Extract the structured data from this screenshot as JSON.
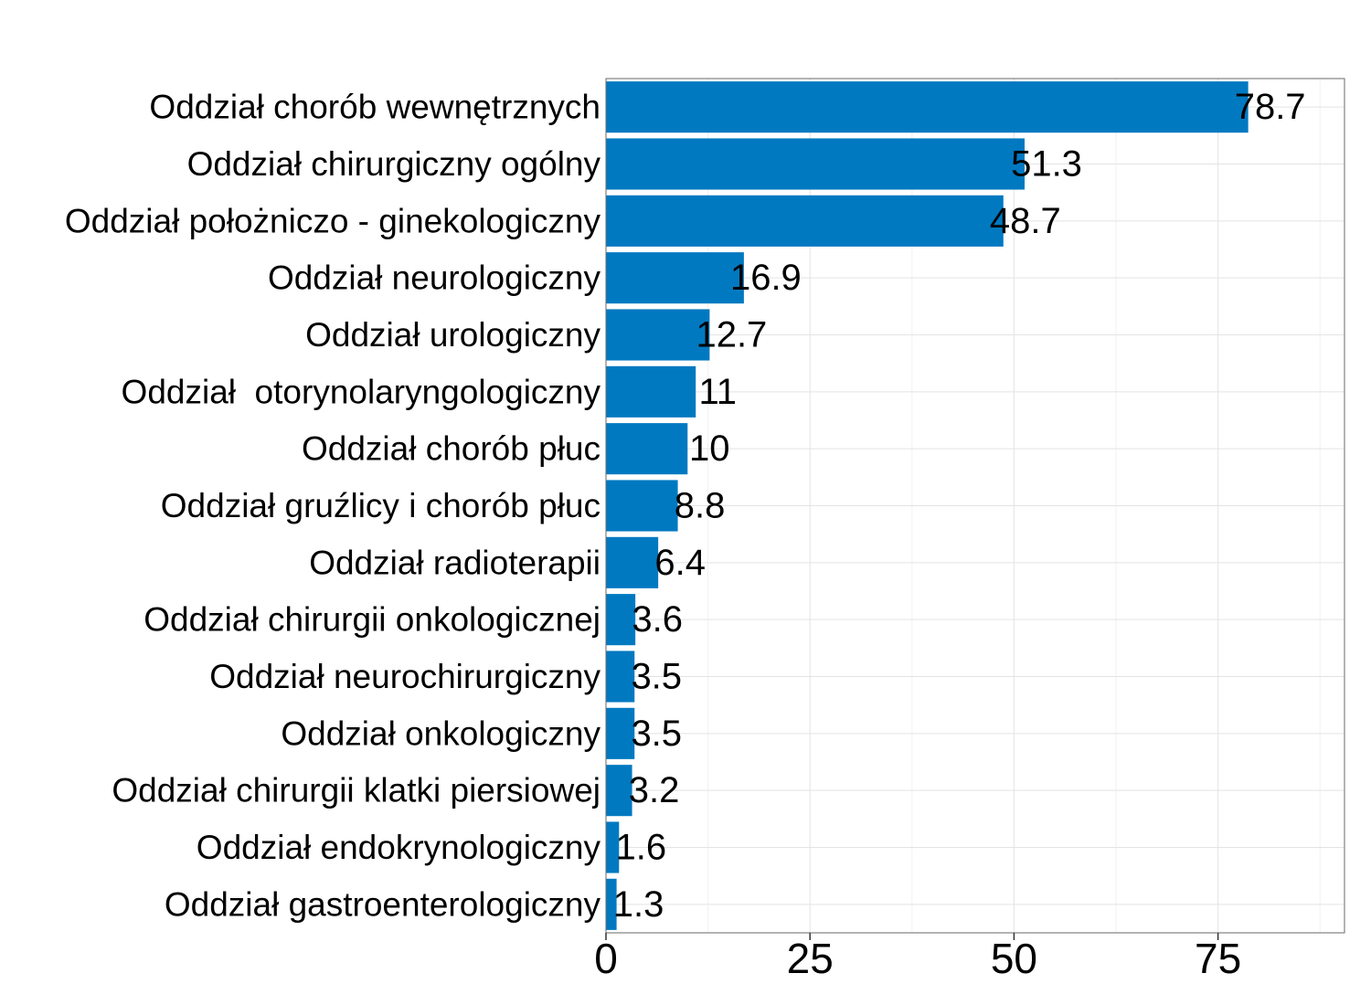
{
  "chart_data": {
    "type": "bar",
    "orientation": "horizontal",
    "categories": [
      "Oddział chorób wewnętrznych",
      "Oddział chirurgiczny ogólny",
      "Oddział położniczo - ginekologiczny",
      "Oddział neurologiczny",
      "Oddział urologiczny",
      "Oddział  otorynolaryngologiczny",
      "Oddział chorób płuc",
      "Oddział gruźlicy i chorób płuc",
      "Oddział radioterapii",
      "Oddział chirurgii onkologicznej",
      "Oddział neurochirurgiczny",
      "Oddział onkologiczny",
      "Oddział chirurgii klatki piersiowej",
      "Oddział endokrynologiczny",
      "Oddział gastroenterologiczny"
    ],
    "values": [
      78.7,
      51.3,
      48.7,
      16.9,
      12.7,
      11,
      10,
      8.8,
      6.4,
      3.6,
      3.5,
      3.5,
      3.2,
      1.6,
      1.3
    ],
    "value_labels": [
      "78.7",
      "51.3",
      "48.7",
      "16.9",
      "12.7",
      "11",
      "10",
      "8.8",
      "6.4",
      "3.6",
      "3.5",
      "3.5",
      "3.2",
      "1.6",
      "1.3"
    ],
    "x_ticks": [
      0,
      25,
      50,
      75
    ],
    "x_tick_labels": [
      "0",
      "25",
      "50",
      "75"
    ],
    "xlim": [
      0,
      90.5
    ],
    "grid": true,
    "legend": "none",
    "bar_color": "#0079c1"
  }
}
